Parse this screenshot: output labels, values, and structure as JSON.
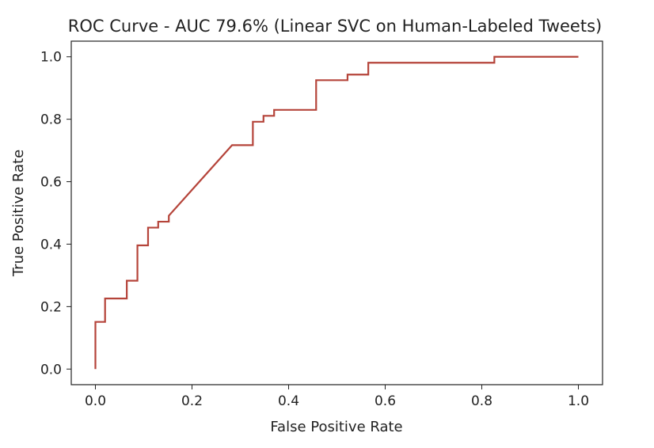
{
  "chart_data": {
    "type": "line",
    "title": "ROC Curve - AUC 79.6% (Linear SVC on Human-Labeled Tweets)",
    "xlabel": "False Positive Rate",
    "ylabel": "True Positive Rate",
    "xlim": [
      -0.05,
      1.05
    ],
    "ylim": [
      -0.05,
      1.05
    ],
    "xticks": [
      "0.0",
      "0.2",
      "0.4",
      "0.6",
      "0.8",
      "1.0"
    ],
    "yticks": [
      "0.0",
      "0.2",
      "0.4",
      "0.6",
      "0.8",
      "1.0"
    ],
    "grid": false,
    "series": [
      {
        "color": "#b5443a",
        "x": [
          0.0,
          0.0,
          0.0,
          0.02,
          0.02,
          0.065,
          0.065,
          0.087,
          0.087,
          0.109,
          0.109,
          0.13,
          0.13,
          0.152,
          0.152,
          0.283,
          0.326,
          0.326,
          0.348,
          0.348,
          0.37,
          0.37,
          0.457,
          0.457,
          0.522,
          0.522,
          0.565,
          0.565,
          0.826,
          0.826,
          1.0
        ],
        "y": [
          0.0,
          0.0,
          0.151,
          0.151,
          0.226,
          0.226,
          0.283,
          0.283,
          0.396,
          0.396,
          0.453,
          0.453,
          0.472,
          0.472,
          0.491,
          0.717,
          0.717,
          0.792,
          0.792,
          0.811,
          0.811,
          0.83,
          0.83,
          0.925,
          0.925,
          0.943,
          0.943,
          0.981,
          0.981,
          1.0,
          1.0
        ]
      }
    ]
  }
}
